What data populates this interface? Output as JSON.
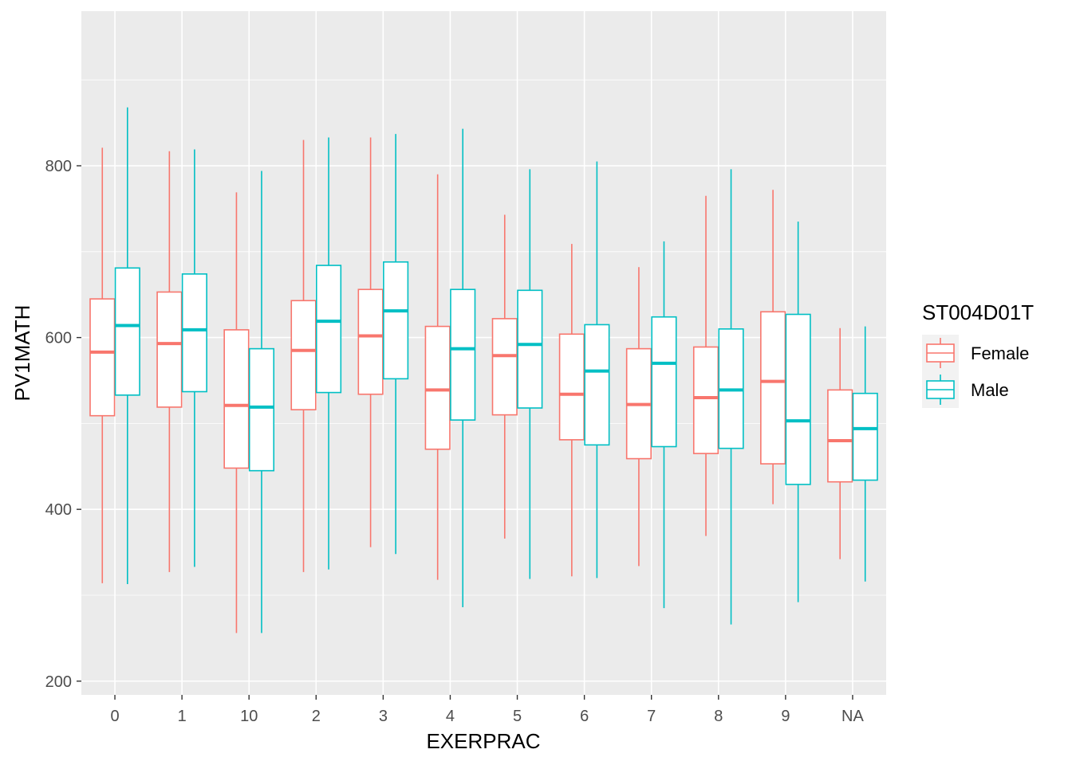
{
  "chart_data": {
    "type": "boxplot",
    "title": "",
    "xlabel": "EXERPRAC",
    "ylabel": "PV1MATH",
    "ylim": [
      184,
      980
    ],
    "yticks": [
      200,
      400,
      600,
      800
    ],
    "categories": [
      "0",
      "1",
      "10",
      "2",
      "3",
      "4",
      "5",
      "6",
      "7",
      "8",
      "9",
      "NA"
    ],
    "grid": true,
    "legend": {
      "title": "ST004D01T",
      "placement": "right"
    },
    "series": [
      {
        "name": "Female",
        "color": "#F8766D",
        "boxes": [
          {
            "min": 314,
            "q1": 509,
            "median": 583,
            "q3": 645,
            "max": 821
          },
          {
            "min": 327,
            "q1": 519,
            "median": 593,
            "q3": 653,
            "max": 817
          },
          {
            "min": 256,
            "q1": 448,
            "median": 521,
            "q3": 609,
            "max": 769
          },
          {
            "min": 327,
            "q1": 516,
            "median": 585,
            "q3": 643,
            "max": 830
          },
          {
            "min": 356,
            "q1": 534,
            "median": 602,
            "q3": 656,
            "max": 833
          },
          {
            "min": 318,
            "q1": 470,
            "median": 539,
            "q3": 613,
            "max": 790
          },
          {
            "min": 366,
            "q1": 510,
            "median": 579,
            "q3": 622,
            "max": 743
          },
          {
            "min": 322,
            "q1": 481,
            "median": 534,
            "q3": 604,
            "max": 709
          },
          {
            "min": 334,
            "q1": 459,
            "median": 522,
            "q3": 587,
            "max": 682
          },
          {
            "min": 369,
            "q1": 465,
            "median": 530,
            "q3": 589,
            "max": 765
          },
          {
            "min": 406,
            "q1": 453,
            "median": 549,
            "q3": 630,
            "max": 772
          },
          {
            "min": 342,
            "q1": 432,
            "median": 480,
            "q3": 539,
            "max": 611
          }
        ]
      },
      {
        "name": "Male",
        "color": "#00BFC4",
        "boxes": [
          {
            "min": 313,
            "q1": 533,
            "median": 614,
            "q3": 681,
            "max": 868
          },
          {
            "min": 333,
            "q1": 537,
            "median": 609,
            "q3": 674,
            "max": 819
          },
          {
            "min": 256,
            "q1": 445,
            "median": 519,
            "q3": 587,
            "max": 794
          },
          {
            "min": 330,
            "q1": 536,
            "median": 619,
            "q3": 684,
            "max": 833
          },
          {
            "min": 348,
            "q1": 552,
            "median": 631,
            "q3": 688,
            "max": 837
          },
          {
            "min": 286,
            "q1": 504,
            "median": 587,
            "q3": 656,
            "max": 843
          },
          {
            "min": 319,
            "q1": 518,
            "median": 592,
            "q3": 655,
            "max": 796
          },
          {
            "min": 320,
            "q1": 475,
            "median": 561,
            "q3": 615,
            "max": 805
          },
          {
            "min": 285,
            "q1": 473,
            "median": 570,
            "q3": 624,
            "max": 712
          },
          {
            "min": 266,
            "q1": 471,
            "median": 539,
            "q3": 610,
            "max": 796
          },
          {
            "min": 292,
            "q1": 429,
            "median": 503,
            "q3": 627,
            "max": 735
          },
          {
            "min": 316,
            "q1": 434,
            "median": 494,
            "q3": 535,
            "max": 613
          }
        ]
      }
    ]
  }
}
